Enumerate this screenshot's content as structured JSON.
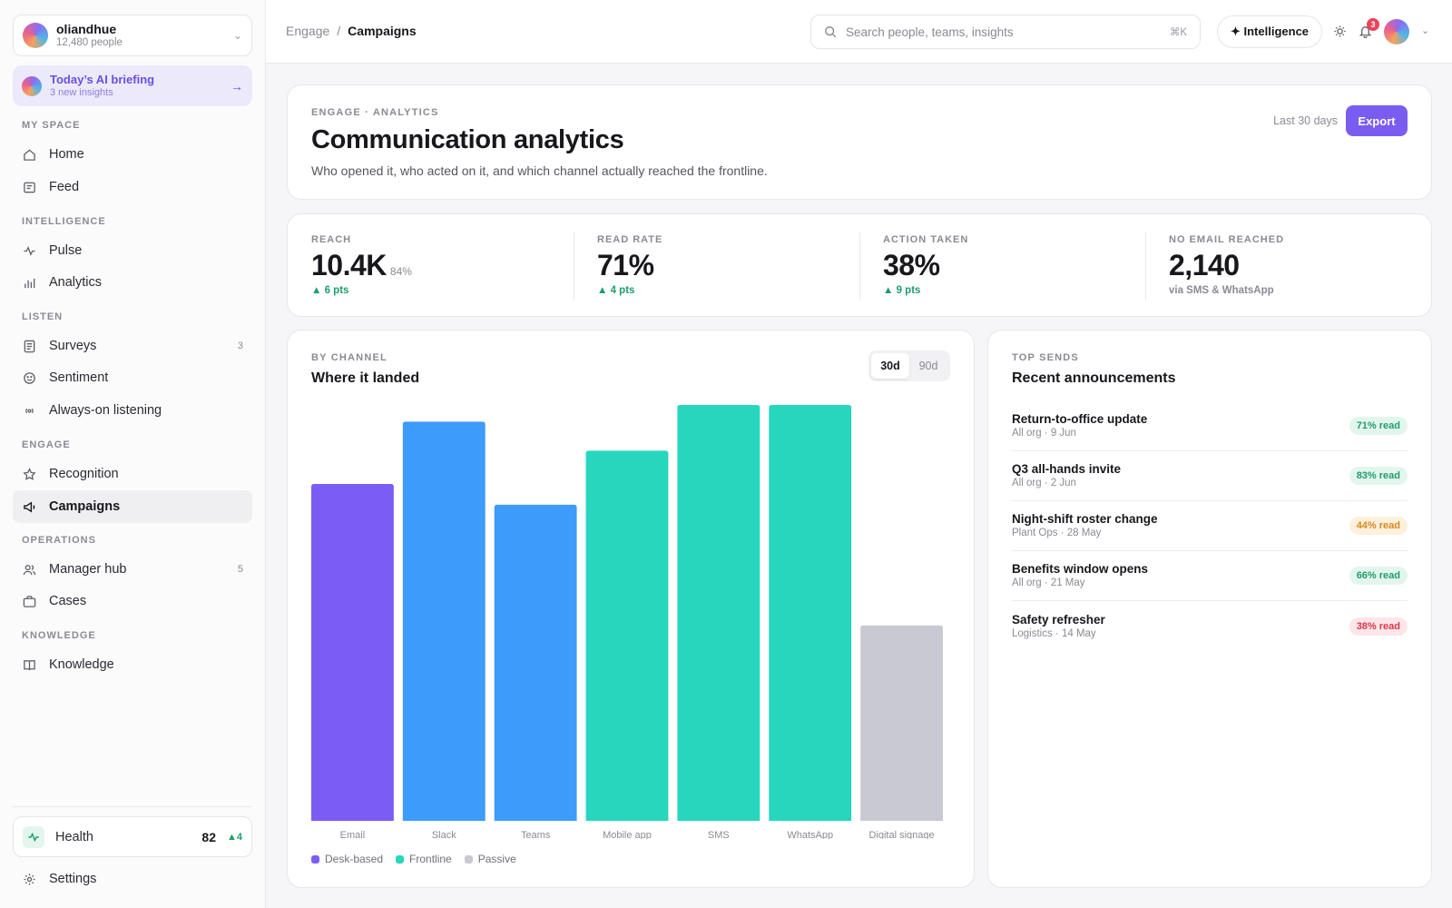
{
  "sidebar": {
    "org_name": "oliandhue",
    "org_people": "12,480 people",
    "briefing_title": "Today’s AI briefing",
    "briefing_sub": "3 new insights",
    "sections": {
      "my_space": "MY SPACE",
      "intelligence": "INTELLIGENCE",
      "listen": "LISTEN",
      "engage": "ENGAGE",
      "operations": "OPERATIONS",
      "knowledge": "KNOWLEDGE"
    },
    "items": {
      "home": "Home",
      "feed": "Feed",
      "pulse": "Pulse",
      "analytics": "Analytics",
      "surveys": "Surveys",
      "surveys_count": "3",
      "sentiment": "Sentiment",
      "listening": "Always-on listening",
      "recognition": "Recognition",
      "campaigns": "Campaigns",
      "manager_hub": "Manager hub",
      "manager_hub_count": "5",
      "cases": "Cases",
      "knowledge": "Knowledge"
    },
    "health_label": "Health",
    "health_score": "82",
    "health_delta": "▲4",
    "settings": "Settings"
  },
  "header": {
    "breadcrumb_parent": "Engage",
    "breadcrumb_sep": "/",
    "breadcrumb_current": "Campaigns",
    "search_placeholder": "Search people, teams, insights",
    "search_shortcut": "⌘K",
    "intelligence_label": "✦ Intelligence",
    "notification_count": "3"
  },
  "hero": {
    "eyebrow": "ENGAGE · ANALYTICS",
    "title": "Communication analytics",
    "subtitle": "Who opened it, who acted on it, and which channel actually reached the frontline.",
    "range": "Last 30 days",
    "export_label": "Export"
  },
  "stats": [
    {
      "label": "REACH",
      "value": "10.4K",
      "extra": "84%",
      "delta": "▲ 6 pts"
    },
    {
      "label": "READ RATE",
      "value": "71%",
      "delta": "▲ 4 pts"
    },
    {
      "label": "ACTION TAKEN",
      "value": "38%",
      "delta": "▲ 9 pts"
    },
    {
      "label": "NO EMAIL REACHED",
      "value": "2,140",
      "note": "via SMS & WhatsApp"
    }
  ],
  "channel_card": {
    "eyebrow": "BY CHANNEL",
    "title": "Where it landed",
    "toggle_30": "30d",
    "toggle_90": "90d"
  },
  "chart_data": {
    "type": "bar",
    "categories": [
      "Email",
      "Slack",
      "Teams",
      "Mobile app",
      "SMS",
      "WhatsApp",
      "Digital signage"
    ],
    "values": [
      81,
      96,
      76,
      89,
      100,
      100,
      47
    ],
    "groups": [
      "Desk-based",
      "Desk-based",
      "Desk-based",
      "Frontline",
      "Frontline",
      "Frontline",
      "Passive"
    ],
    "bar_colors": [
      "#7b5cf5",
      "#3d9bfb",
      "#3d9bfb",
      "#26d6bd",
      "#26d6bd",
      "#26d6bd",
      "#c9c9d4"
    ],
    "legend": [
      {
        "name": "Desk-based",
        "color": "#7b5cf5"
      },
      {
        "name": "Frontline",
        "color": "#26d6bd"
      },
      {
        "name": "Passive",
        "color": "#c9c9d4"
      }
    ],
    "ylim": [
      0,
      100
    ],
    "grid": false
  },
  "sends": {
    "eyebrow": "TOP SENDS",
    "title": "Recent announcements",
    "items": [
      {
        "name": "Return-to-office update",
        "meta": "All org · 9 Jun",
        "read": "71% read",
        "level": "good"
      },
      {
        "name": "Q3 all-hands invite",
        "meta": "All org · 2 Jun",
        "read": "83% read",
        "level": "good"
      },
      {
        "name": "Night-shift roster change",
        "meta": "Plant Ops · 28 May",
        "read": "44% read",
        "level": "mid"
      },
      {
        "name": "Benefits window opens",
        "meta": "All org · 21 May",
        "read": "66% read",
        "level": "good"
      },
      {
        "name": "Safety refresher",
        "meta": "Logistics · 14 May",
        "read": "38% read",
        "level": "bad"
      }
    ]
  }
}
